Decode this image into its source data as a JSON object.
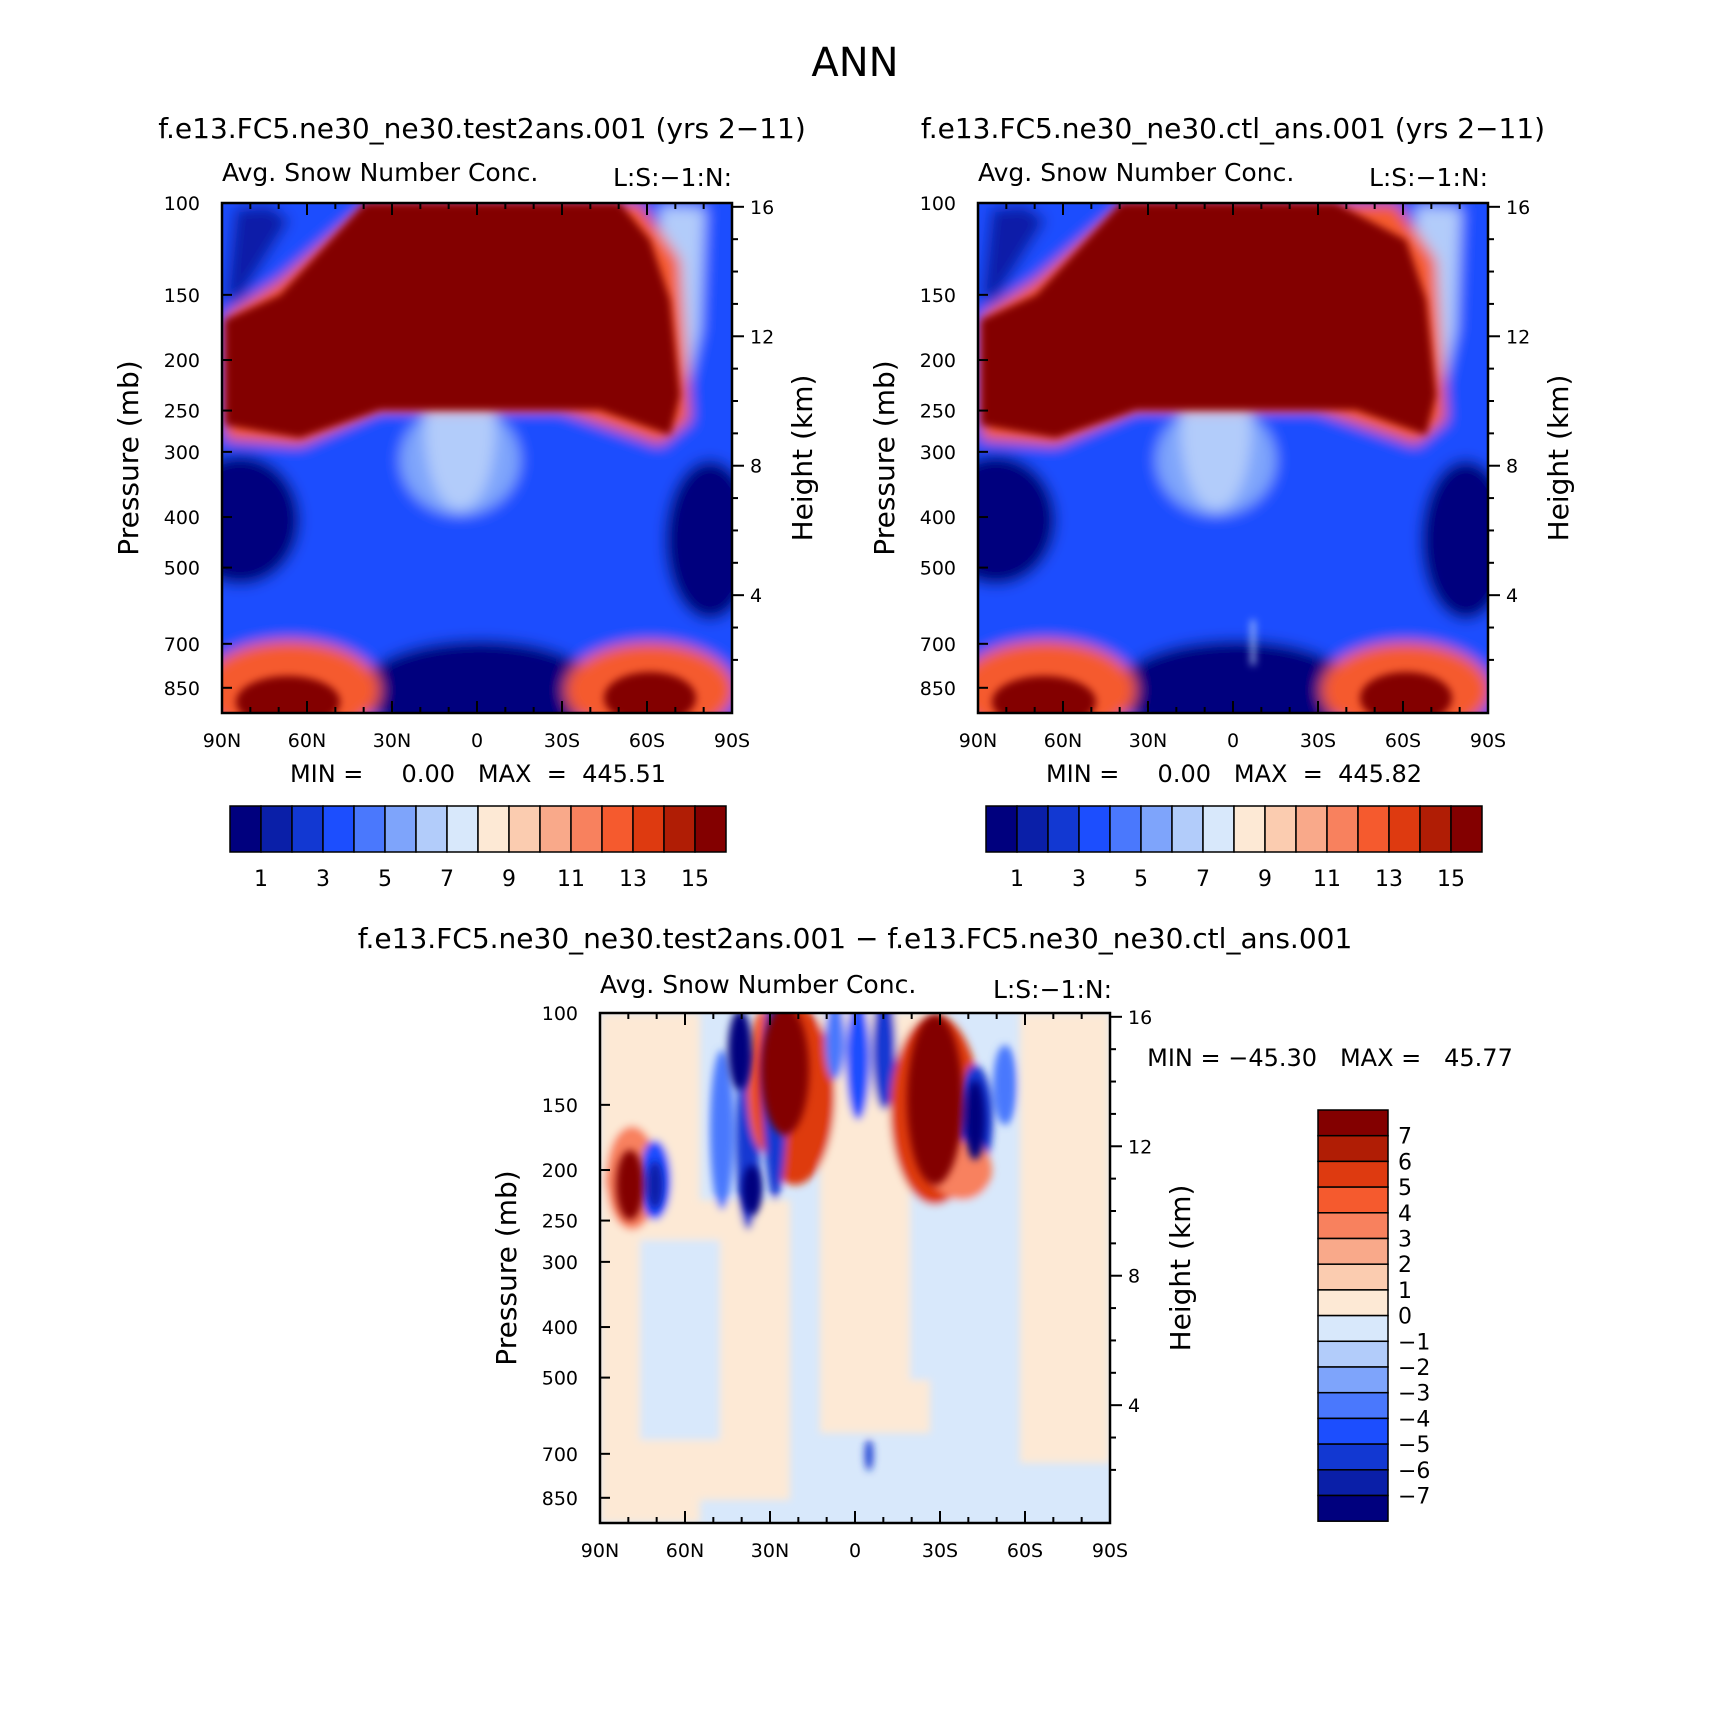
{
  "figure_title": "ANN",
  "colors": {
    "abs_levels": [
      "#00007e",
      "#0a1fa8",
      "#1238d2",
      "#1c4efe",
      "#4a78fd",
      "#7ea4fb",
      "#b2ccfa",
      "#d8e8fb",
      "#fde9d5",
      "#fbccb0",
      "#f9a98a",
      "#f8815e",
      "#f55a2e",
      "#de3a10",
      "#b01d05",
      "#830000"
    ],
    "diff_levels": [
      "#830000",
      "#b01d05",
      "#de3a10",
      "#f55a2e",
      "#f8815e",
      "#f9a98a",
      "#fbccb0",
      "#fde9d5",
      "#d8e8fb",
      "#b2ccfa",
      "#7ea4fb",
      "#4a78fd",
      "#1c4efe",
      "#1238d2",
      "#0a1fa8",
      "#00007e"
    ]
  },
  "panels": {
    "left": {
      "case_title": "f.e13.FC5.ne30_ne30.test2ans.001 (yrs 2−11)",
      "var_title": "Avg. Snow Number Conc.",
      "units_label": "L:S:−1:N:",
      "ylabel_left": "Pressure (mb)",
      "ylabel_right": "Height (km)",
      "min_max": "MIN =     0.00   MAX  =  445.51"
    },
    "right": {
      "case_title": "f.e13.FC5.ne30_ne30.ctl_ans.001 (yrs 2−11)",
      "var_title": "Avg. Snow Number Conc.",
      "units_label": "L:S:−1:N:",
      "ylabel_left": "Pressure (mb)",
      "ylabel_right": "Height (km)",
      "min_max": "MIN =     0.00   MAX  =  445.82"
    },
    "diff": {
      "case_title": "f.e13.FC5.ne30_ne30.test2ans.001 − f.e13.FC5.ne30_ne30.ctl_ans.001",
      "var_title": "Avg. Snow Number Conc.",
      "units_label": "L:S:−1:N:",
      "ylabel_left": "Pressure (mb)",
      "ylabel_right": "Height (km)",
      "min_max": "MIN = −45.30   MAX =   45.77"
    }
  },
  "chart_data": [
    {
      "type": "heatmap",
      "panel": "left",
      "title": "f.e13.FC5.ne30_ne30.test2ans.001 (yrs 2−11)",
      "subtitle": "Avg. Snow Number Conc.",
      "units": "L:S:−1:N:",
      "xlabel": "",
      "ylabel": "Pressure (mb)",
      "y2label": "Height (km)",
      "x_ticks": [
        "90N",
        "60N",
        "30N",
        "0",
        "30S",
        "60S",
        "90S"
      ],
      "xlim": [
        90,
        -90
      ],
      "y_ticks": [
        100,
        150,
        200,
        250,
        300,
        400,
        500,
        700,
        850
      ],
      "ylim": [
        100,
        950
      ],
      "y_scale": "log",
      "y2_ticks": [
        16,
        12,
        8,
        4
      ],
      "colorbar_levels": [
        1,
        2,
        3,
        4,
        5,
        6,
        7,
        8,
        9,
        10,
        11,
        12,
        13,
        14,
        15
      ],
      "colorbar_labels": [
        "1",
        "3",
        "5",
        "7",
        "9",
        "11",
        "13",
        "15"
      ],
      "colorbar_orientation": "horizontal",
      "min": 0.0,
      "max": 445.51
    },
    {
      "type": "heatmap",
      "panel": "right",
      "title": "f.e13.FC5.ne30_ne30.ctl_ans.001 (yrs 2−11)",
      "subtitle": "Avg. Snow Number Conc.",
      "units": "L:S:−1:N:",
      "xlabel": "",
      "ylabel": "Pressure (mb)",
      "y2label": "Height (km)",
      "x_ticks": [
        "90N",
        "60N",
        "30N",
        "0",
        "30S",
        "60S",
        "90S"
      ],
      "xlim": [
        90,
        -90
      ],
      "y_ticks": [
        100,
        150,
        200,
        250,
        300,
        400,
        500,
        700,
        850
      ],
      "ylim": [
        100,
        950
      ],
      "y_scale": "log",
      "y2_ticks": [
        16,
        12,
        8,
        4
      ],
      "colorbar_levels": [
        1,
        2,
        3,
        4,
        5,
        6,
        7,
        8,
        9,
        10,
        11,
        12,
        13,
        14,
        15
      ],
      "colorbar_labels": [
        "1",
        "3",
        "5",
        "7",
        "9",
        "11",
        "13",
        "15"
      ],
      "colorbar_orientation": "horizontal",
      "min": 0.0,
      "max": 445.82
    },
    {
      "type": "heatmap",
      "panel": "diff",
      "title": "f.e13.FC5.ne30_ne30.test2ans.001 − f.e13.FC5.ne30_ne30.ctl_ans.001",
      "subtitle": "Avg. Snow Number Conc.",
      "units": "L:S:−1:N:",
      "xlabel": "",
      "ylabel": "Pressure (mb)",
      "y2label": "Height (km)",
      "x_ticks": [
        "90N",
        "60N",
        "30N",
        "0",
        "30S",
        "60S",
        "90S"
      ],
      "xlim": [
        90,
        -90
      ],
      "y_ticks": [
        100,
        150,
        200,
        250,
        300,
        400,
        500,
        700,
        850
      ],
      "ylim": [
        100,
        950
      ],
      "y_scale": "log",
      "y2_ticks": [
        16,
        12,
        8,
        4
      ],
      "colorbar_levels": [
        7,
        6,
        5,
        4,
        3,
        2,
        1,
        0,
        -1,
        -2,
        -3,
        -4,
        -5,
        -6,
        -7
      ],
      "colorbar_labels": [
        "7",
        "6",
        "5",
        "4",
        "3",
        "2",
        "1",
        "0",
        "−1",
        "−2",
        "−3",
        "−4",
        "−5",
        "−6",
        "−7"
      ],
      "colorbar_orientation": "vertical",
      "min": -45.3,
      "max": 45.77
    }
  ]
}
